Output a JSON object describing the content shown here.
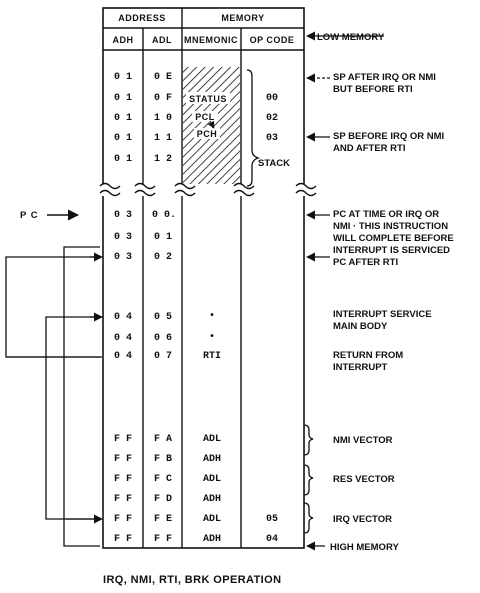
{
  "table": {
    "header_address": "ADDRESS",
    "header_memory": "MEMORY",
    "col_adh": "ADH",
    "col_adl": "ADL",
    "col_mnemonic": "MNEMONIC",
    "col_opcode": "OP CODE"
  },
  "rows": [
    {
      "adh": "0  1",
      "adl": "0  E",
      "mnemonic": "",
      "opcode": ""
    },
    {
      "adh": "0  1",
      "adl": "0  F",
      "mnemonic": "STATUS",
      "opcode": "00"
    },
    {
      "adh": "0  1",
      "adl": "1  0",
      "mnemonic": "PCL",
      "opcode": "02"
    },
    {
      "adh": "0  1",
      "adl": "1  1",
      "mnemonic": "PCH",
      "opcode": "03"
    },
    {
      "adh": "0  1",
      "adl": "1  2",
      "mnemonic": "",
      "opcode": ""
    },
    {
      "adh": "0  3",
      "adl": "0  0.",
      "mnemonic": "",
      "opcode": ""
    },
    {
      "adh": "0  3",
      "adl": "0  1",
      "mnemonic": "",
      "opcode": ""
    },
    {
      "adh": "0  3",
      "adl": "0  2",
      "mnemonic": "",
      "opcode": ""
    },
    {
      "adh": "0  4",
      "adl": "0  5",
      "mnemonic": "•",
      "opcode": ""
    },
    {
      "adh": "0  4",
      "adl": "0  6",
      "mnemonic": "•",
      "opcode": ""
    },
    {
      "adh": "0  4",
      "adl": "0  7",
      "mnemonic": "RTI",
      "opcode": ""
    },
    {
      "adh": "F  F",
      "adl": "F  A",
      "mnemonic": "ADL",
      "opcode": ""
    },
    {
      "adh": "F  F",
      "adl": "F  B",
      "mnemonic": "ADH",
      "opcode": ""
    },
    {
      "adh": "F  F",
      "adl": "F  C",
      "mnemonic": "ADL",
      "opcode": ""
    },
    {
      "adh": "F  F",
      "adl": "F  D",
      "mnemonic": "ADH",
      "opcode": ""
    },
    {
      "adh": "F  F",
      "adl": "F  E",
      "mnemonic": "ADL",
      "opcode": "05"
    },
    {
      "adh": "F  F",
      "adl": "F  F",
      "mnemonic": "ADH",
      "opcode": "04"
    }
  ],
  "labels": {
    "stack": "STACK",
    "pc": "P C",
    "low_memory": "LOW MEMORY",
    "high_memory": "HIGH MEMORY",
    "sp_after": [
      "SP AFTER IRQ OR NMI",
      "BUT BEFORE RTI"
    ],
    "sp_before": [
      "SP BEFORE IRQ OR NMI",
      "AND AFTER RTI"
    ],
    "pc_at_time": [
      "PC AT TIME OR IRQ OR",
      "NMI · THIS INSTRUCTION",
      "WILL COMPLETE BEFORE",
      "INTERRUPT IS SERVICED"
    ],
    "pc_after": "PC AFTER RTI",
    "isr_body": [
      "INTERRUPT SERVICE",
      "MAIN BODY"
    ],
    "return_from": [
      "RETURN FROM",
      "INTERRUPT"
    ],
    "nmi_vector": "NMI VECTOR",
    "res_vector": "RES VECTOR",
    "irq_vector": "IRQ VECTOR"
  },
  "caption": "IRQ, NMI, RTI, BRK OPERATION"
}
